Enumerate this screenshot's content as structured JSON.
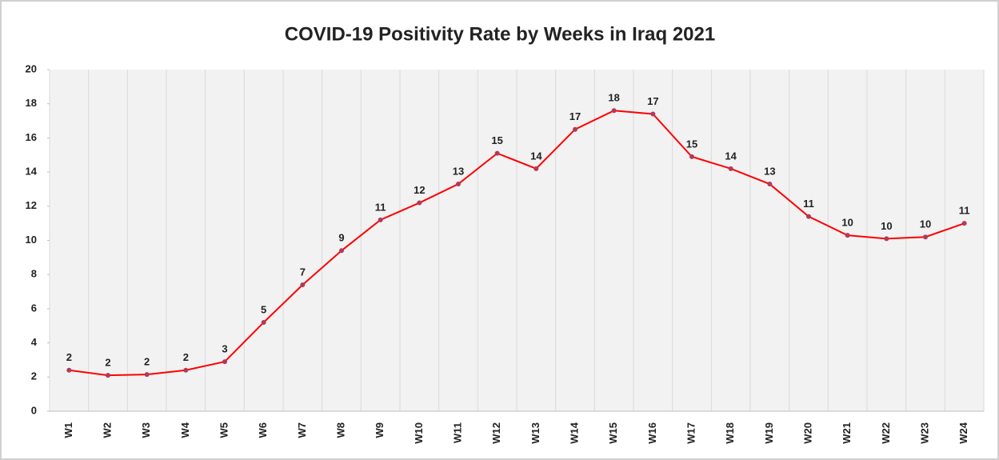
{
  "chart_data": {
    "type": "line",
    "title": "COVID-19 Positivity Rate by Weeks in Iraq 2021",
    "categories": [
      "W1",
      "W2",
      "W3",
      "W4",
      "W5",
      "W6",
      "W7",
      "W8",
      "W9",
      "W10",
      "W11",
      "W12",
      "W13",
      "W14",
      "W15",
      "W16",
      "W17",
      "W18",
      "W19",
      "W20",
      "W21",
      "W22",
      "W23",
      "W24"
    ],
    "series": [
      {
        "name": "Positivity Rate",
        "color": "#ff0000",
        "marker_color": "#b03a5b",
        "values": [
          2.4,
          2.1,
          2.15,
          2.4,
          2.9,
          5.2,
          7.4,
          9.4,
          11.2,
          12.2,
          13.3,
          15.1,
          14.2,
          16.5,
          17.6,
          17.4,
          14.9,
          14.2,
          13.3,
          11.4,
          10.3,
          10.1,
          10.2,
          11.0
        ],
        "value_labels": [
          "2",
          "2",
          "2",
          "2",
          "3",
          "5",
          "7",
          "9",
          "11",
          "12",
          "13",
          "15",
          "14",
          "17",
          "18",
          "17",
          "15",
          "14",
          "13",
          "11",
          "10",
          "10",
          "10",
          "11"
        ]
      }
    ],
    "ylim": [
      0,
      20
    ],
    "yticks": [
      0,
      2,
      4,
      6,
      8,
      10,
      12,
      14,
      16,
      18,
      20
    ],
    "grid": true
  }
}
